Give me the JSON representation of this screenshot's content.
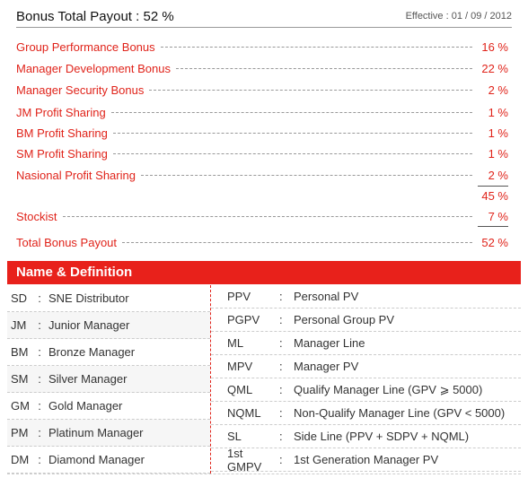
{
  "header": {
    "title": "Bonus Total Payout : 52 %",
    "effective": "Effective : 01 / 09 / 2012"
  },
  "bonuses": [
    {
      "label": "Group Performance Bonus",
      "value": "16 %"
    },
    {
      "label": "Manager Development Bonus",
      "value": "22 %"
    },
    {
      "label": "Manager Security Bonus",
      "value": "2 %"
    },
    {
      "label": "JM Profit Sharing",
      "value": "1 %"
    },
    {
      "label": "BM Profit Sharing",
      "value": "1 %"
    },
    {
      "label": "SM Profit Sharing",
      "value": "1 %"
    },
    {
      "label": "Nasional Profit Sharing",
      "value": "2 %"
    }
  ],
  "subtotal": "45 %",
  "stockist": {
    "label": "Stockist",
    "value": "7 %"
  },
  "total": {
    "label": "Total Bonus Payout",
    "value": "52 %"
  },
  "definitions": {
    "title": "Name & Definition",
    "separator": ":",
    "ranks": [
      {
        "code": "SD",
        "name": "SNE Distributor"
      },
      {
        "code": "JM",
        "name": "Junior Manager"
      },
      {
        "code": "BM",
        "name": "Bronze Manager"
      },
      {
        "code": "SM",
        "name": "Silver Manager"
      },
      {
        "code": "GM",
        "name": "Gold Manager"
      },
      {
        "code": "PM",
        "name": "Platinum Manager"
      },
      {
        "code": "DM",
        "name": "Diamond Manager"
      }
    ],
    "terms": [
      {
        "code": "PPV",
        "name": "Personal PV"
      },
      {
        "code": "PGPV",
        "name": "Personal Group PV"
      },
      {
        "code": "ML",
        "name": "Manager Line"
      },
      {
        "code": "MPV",
        "name": "Manager PV"
      },
      {
        "code": "QML",
        "name": "Qualify Manager Line (GPV ⩾ 5000)"
      },
      {
        "code": "NQML",
        "name": "Non-Qualify Manager Line (GPV < 5000)"
      },
      {
        "code": "SL",
        "name": "Side Line (PPV + SDPV + NQML)"
      },
      {
        "code": "1st GMPV",
        "name": "1st Generation Manager PV"
      }
    ]
  }
}
